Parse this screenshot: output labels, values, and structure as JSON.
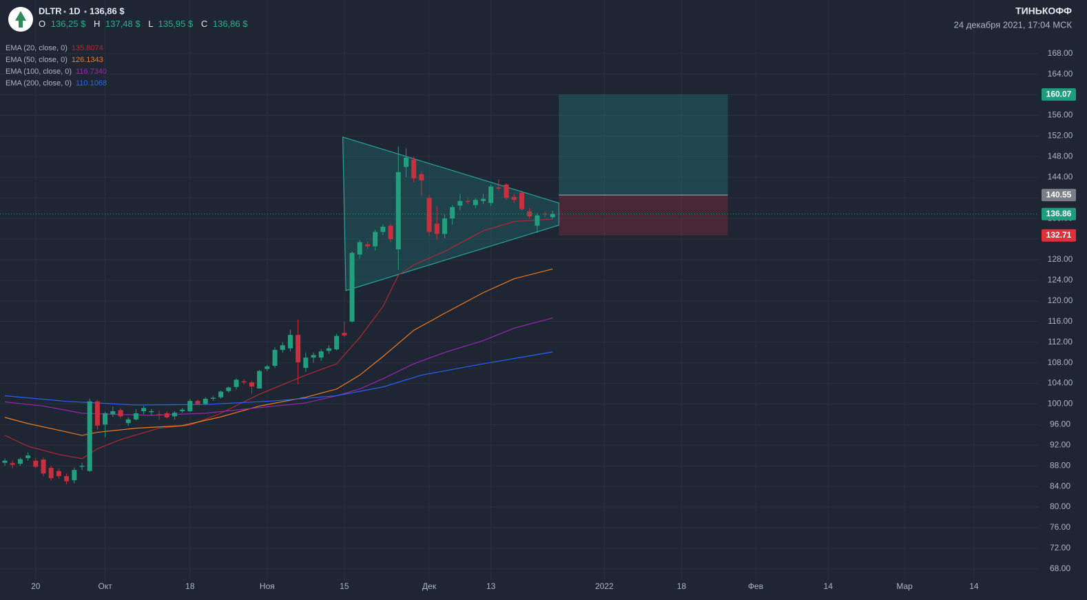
{
  "header": {
    "ticker": "DLTR",
    "interval": "1D",
    "price": "136,86 $",
    "ohlc": [
      {
        "label": "O",
        "value": "136,25 $"
      },
      {
        "label": "H",
        "value": "137,48 $"
      },
      {
        "label": "L",
        "value": "135,95 $"
      },
      {
        "label": "C",
        "value": "136,86 $"
      }
    ],
    "brand": "ТИНЬКОФФ",
    "datetime": "24 декабря 2021, 17:04 МСК"
  },
  "chart_data": {
    "type": "candlestick",
    "up_color": "#22a07e",
    "down_color": "#c8303f",
    "grid": true,
    "xlim": [
      -0.625,
      134
    ],
    "ylim": [
      65.7,
      178.4
    ],
    "xticks": [
      {
        "value": 4,
        "label": "20"
      },
      {
        "value": 13,
        "label": "Окт"
      },
      {
        "value": 24,
        "label": "18"
      },
      {
        "value": 34,
        "label": "Ноя"
      },
      {
        "value": 44,
        "label": "15"
      },
      {
        "value": 55,
        "label": "Дек"
      },
      {
        "value": 63,
        "label": "13"
      },
      {
        "value": 77.7,
        "label": "2022"
      },
      {
        "value": 87.7,
        "label": "18"
      },
      {
        "value": 97.3,
        "label": "Фев"
      },
      {
        "value": 106.7,
        "label": "14"
      },
      {
        "value": 116.6,
        "label": "Мар"
      },
      {
        "value": 125.6,
        "label": "14"
      }
    ],
    "yticks": [
      {
        "value": 68,
        "label": "68.00"
      },
      {
        "value": 72,
        "label": "72.00"
      },
      {
        "value": 76,
        "label": "76.00"
      },
      {
        "value": 80,
        "label": "80.00"
      },
      {
        "value": 84,
        "label": "84.00"
      },
      {
        "value": 88,
        "label": "88.00"
      },
      {
        "value": 92,
        "label": "92.00"
      },
      {
        "value": 96,
        "label": "96.00"
      },
      {
        "value": 100,
        "label": "100.00"
      },
      {
        "value": 104,
        "label": "104.00"
      },
      {
        "value": 108,
        "label": "108.00"
      },
      {
        "value": 112,
        "label": "112.00"
      },
      {
        "value": 116,
        "label": "116.00"
      },
      {
        "value": 120,
        "label": "120.00"
      },
      {
        "value": 124,
        "label": "124.00"
      },
      {
        "value": 128,
        "label": "128.00"
      },
      {
        "value": 132,
        "label": "132.00"
      },
      {
        "value": 136,
        "label": "136.00"
      },
      {
        "value": 140,
        "label": "140.00"
      },
      {
        "value": 144,
        "label": "144.00"
      },
      {
        "value": 148,
        "label": "148.00"
      },
      {
        "value": 152,
        "label": "152.00"
      },
      {
        "value": 156,
        "label": "156.00"
      },
      {
        "value": 160,
        "label": "160.00"
      },
      {
        "value": 164,
        "label": "164.00"
      },
      {
        "value": 168,
        "label": "168.00"
      }
    ],
    "open": [
      88.6,
      88.5,
      88.4,
      89.5,
      89.0,
      89.2,
      87.6,
      87.0,
      86.0,
      85.2,
      87.8,
      87.0,
      100.5,
      96.0,
      98.0,
      98.8,
      96.3,
      97.0,
      98.6,
      98.4,
      98.0,
      98.2,
      97.6,
      98.6,
      98.6,
      100.6,
      100.0,
      101.0,
      101.3,
      102.5,
      103.3,
      104.4,
      104.2,
      103.0,
      106.8,
      107.4,
      110.5,
      110.8,
      113.4,
      107.0,
      109.0,
      109.0,
      110.3,
      110.6,
      113.8,
      116.0,
      129.0,
      131.0,
      130.6,
      133.4,
      134.6,
      130.0,
      146.0,
      147.4,
      144.6,
      140.0,
      135.0,
      133.0,
      136.0,
      138.5,
      139.4,
      138.6,
      139.4,
      139.0,
      142.0,
      142.6,
      140.2,
      141.0,
      137.4,
      134.6,
      136.9,
      136.25
    ],
    "high": [
      89.4,
      89.0,
      89.6,
      90.6,
      89.5,
      89.6,
      88.0,
      87.5,
      86.5,
      87.6,
      88.6,
      101.0,
      100.8,
      98.5,
      99.5,
      99.2,
      97.4,
      99.0,
      99.6,
      99.0,
      98.7,
      98.6,
      98.6,
      99.2,
      101.0,
      100.9,
      101.3,
      101.5,
      102.6,
      103.4,
      105.0,
      104.8,
      104.5,
      106.6,
      107.6,
      111.0,
      112.0,
      114.4,
      116.4,
      110.0,
      110.0,
      110.6,
      111.4,
      113.6,
      116.0,
      129.6,
      131.8,
      131.6,
      133.8,
      134.8,
      135.0,
      150.0,
      149.6,
      148.0,
      145.2,
      140.6,
      138.4,
      136.8,
      138.6,
      140.8,
      140.0,
      140.0,
      140.8,
      142.6,
      143.6,
      142.8,
      140.8,
      141.4,
      138.0,
      137.0,
      137.4,
      137.48
    ],
    "low": [
      88.0,
      87.5,
      88.0,
      89.0,
      87.6,
      86.0,
      85.2,
      85.5,
      84.4,
      84.6,
      87.2,
      86.8,
      95.0,
      93.5,
      97.5,
      97.2,
      95.8,
      96.8,
      98.0,
      97.8,
      97.0,
      97.2,
      97.0,
      98.3,
      98.4,
      99.8,
      99.8,
      100.6,
      101.0,
      102.2,
      102.8,
      103.8,
      102.0,
      103.0,
      106.4,
      107.0,
      110.0,
      110.2,
      103.8,
      106.2,
      108.0,
      108.4,
      109.8,
      110.4,
      113.0,
      115.8,
      128.2,
      130.0,
      129.8,
      132.8,
      131.4,
      126.0,
      144.0,
      143.0,
      140.4,
      132.6,
      132.0,
      132.2,
      134.8,
      137.6,
      138.8,
      138.0,
      138.8,
      138.4,
      141.4,
      139.6,
      139.0,
      137.6,
      136.0,
      133.2,
      136.2,
      135.95
    ],
    "close": [
      89.0,
      88.2,
      89.3,
      90.0,
      87.8,
      86.5,
      85.6,
      86.0,
      85.0,
      87.2,
      88.0,
      100.5,
      95.8,
      98.2,
      98.6,
      97.6,
      97.0,
      98.2,
      99.2,
      98.6,
      97.8,
      97.4,
      98.3,
      98.9,
      100.6,
      100.0,
      101.0,
      101.2,
      102.4,
      103.2,
      104.7,
      104.2,
      103.4,
      106.4,
      107.3,
      110.5,
      111.4,
      113.4,
      108.1,
      109.0,
      109.5,
      110.2,
      110.8,
      113.2,
      113.3,
      129.3,
      131.4,
      130.6,
      133.4,
      134.4,
      132.0,
      145.0,
      147.8,
      143.8,
      143.4,
      133.4,
      133.0,
      136.0,
      138.2,
      139.4,
      139.2,
      139.6,
      139.8,
      142.2,
      141.8,
      140.0,
      139.6,
      137.8,
      136.4,
      136.6,
      136.8,
      136.86
    ],
    "series": [
      {
        "name": "EMA (20, close, 0)",
        "readout": "135.8074",
        "color": "#b22833",
        "x": [
          0,
          3,
          7,
          10,
          12,
          15,
          20,
          24,
          28,
          33,
          39,
          43,
          46,
          49,
          51,
          53,
          57,
          62,
          66,
          71
        ],
        "values": [
          93.9,
          91.8,
          90.2,
          89.4,
          91.3,
          93.1,
          95.3,
          95.9,
          98.2,
          101.9,
          105.6,
          107.8,
          112.9,
          118.9,
          125.0,
          127.0,
          129.6,
          133.6,
          135.4,
          135.9
        ]
      },
      {
        "name": "EMA (50, close, 0)",
        "readout": "126.1343",
        "color": "#f57c1f",
        "x": [
          0,
          3,
          7,
          10,
          12,
          17,
          23,
          28,
          33,
          39,
          43,
          46,
          49,
          53,
          57,
          62,
          66,
          71
        ],
        "values": [
          97.4,
          96.2,
          94.9,
          93.9,
          94.5,
          95.3,
          95.8,
          97.5,
          99.6,
          101.3,
          102.9,
          105.6,
          109.2,
          114.3,
          117.6,
          121.6,
          124.3,
          126.2
        ]
      },
      {
        "name": "EMA (100, close, 0)",
        "readout": "116.7340",
        "color": "#9c27b0",
        "x": [
          0,
          5,
          10,
          14,
          19,
          26,
          33,
          39,
          43,
          46,
          49,
          53,
          57,
          62,
          66,
          71
        ],
        "values": [
          100.4,
          99.6,
          98.2,
          98.0,
          97.8,
          98.2,
          99.3,
          100.2,
          101.6,
          102.9,
          104.9,
          107.8,
          110.0,
          112.3,
          114.7,
          116.7
        ]
      },
      {
        "name": "EMA (200, close, 0)",
        "readout": "110.1068",
        "color": "#2962ff",
        "x": [
          0,
          8,
          17,
          26,
          35,
          43,
          49,
          54,
          62,
          71
        ],
        "values": [
          101.6,
          100.5,
          99.8,
          99.9,
          100.6,
          101.6,
          103.3,
          105.6,
          107.8,
          110.1
        ]
      }
    ],
    "pattern": {
      "x": [
        43.8,
        71.8,
        71.8,
        44.2
      ],
      "y": [
        151.8,
        139.0,
        134.7,
        122.0
      ]
    },
    "position": {
      "x": [
        71.8,
        93.7
      ],
      "target": 160.07,
      "entry": 140.55,
      "stop": 132.71
    }
  }
}
